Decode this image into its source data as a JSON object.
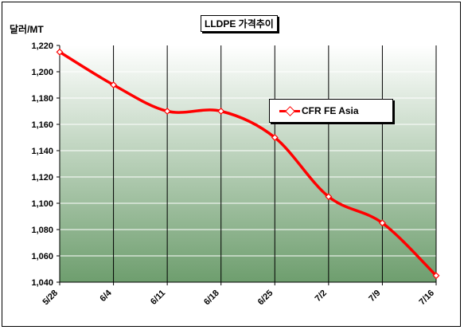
{
  "chart_data": {
    "type": "line",
    "title": "LLDPE 가격추이",
    "ylabel": "달러/MT",
    "xlabel": "",
    "categories": [
      "5/28",
      "6/4",
      "6/11",
      "6/18",
      "6/25",
      "7/2",
      "7/9",
      "7/16"
    ],
    "series": [
      {
        "name": "CFR FE Asia",
        "values": [
          1215,
          1190,
          1170,
          1170,
          1150,
          1105,
          1085,
          1045
        ]
      }
    ],
    "ylim": [
      1040,
      1220
    ],
    "yticks": [
      1040,
      1060,
      1080,
      1100,
      1120,
      1140,
      1160,
      1180,
      1200,
      1220
    ],
    "ytick_labels": [
      "1,040",
      "1,060",
      "1,080",
      "1,100",
      "1,120",
      "1,140",
      "1,160",
      "1,180",
      "1,200",
      "1,220"
    ],
    "grid": true,
    "legend_position": "upper-right",
    "colors": {
      "series": "#ff0000",
      "plot_top": "#ffffff",
      "plot_bottom": "#6e9e6e",
      "grid": "#ffffff"
    }
  }
}
